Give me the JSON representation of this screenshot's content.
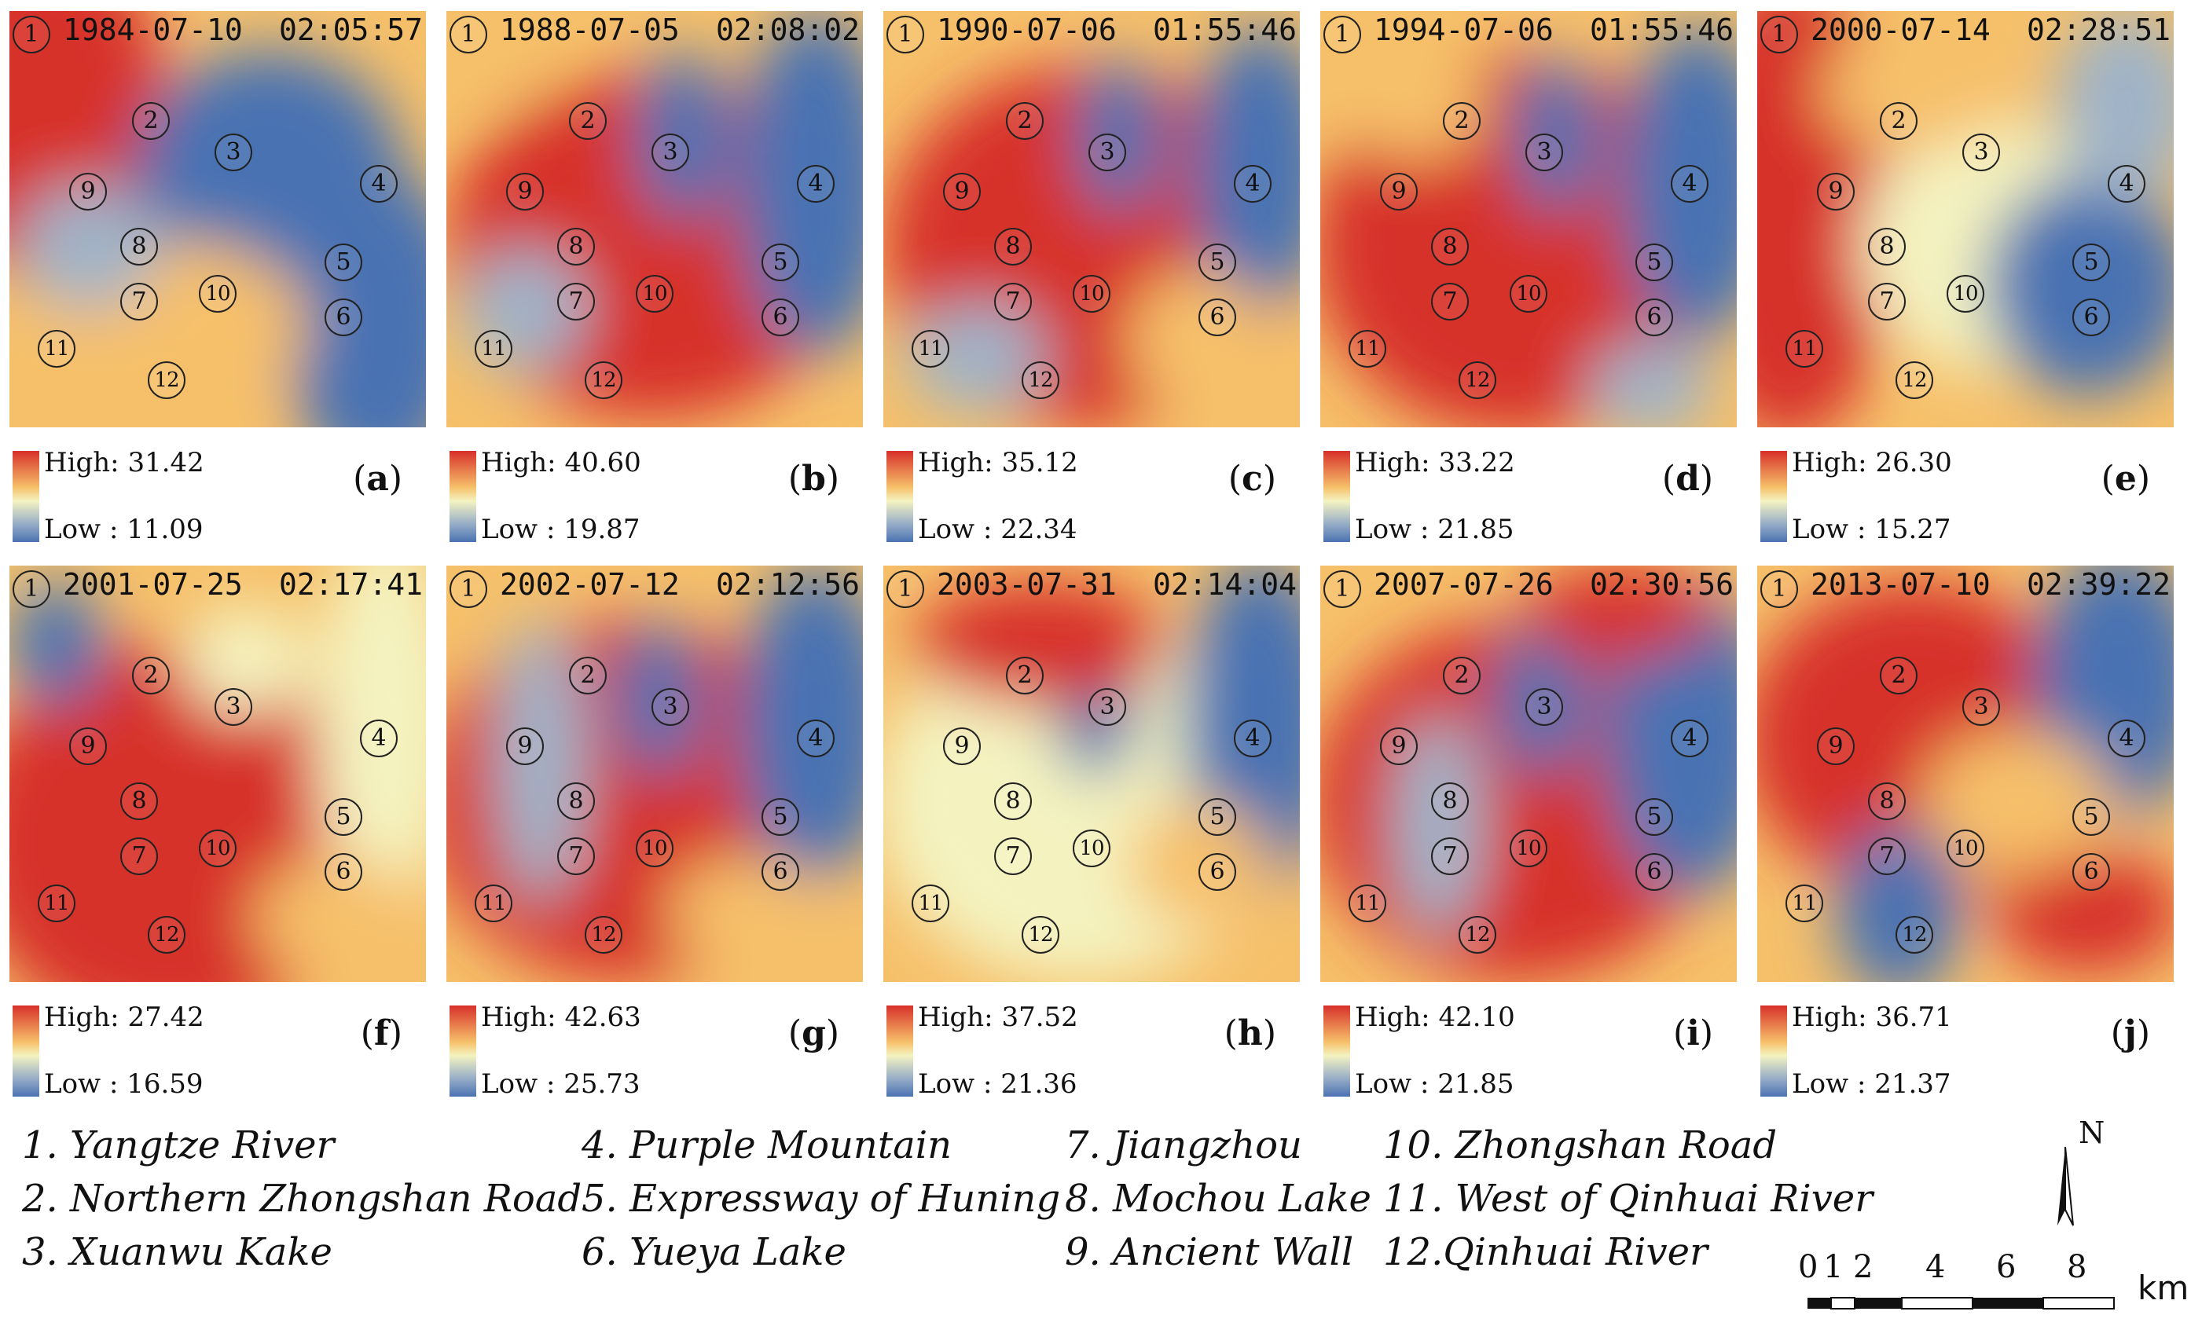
{
  "panels": [
    {
      "letter": "a",
      "date": "1984-07-10",
      "time": "02:05:57",
      "high": "High: 31.42",
      "low": "Low : 11.09"
    },
    {
      "letter": "b",
      "date": "1988-07-05",
      "time": "02:08:02",
      "high": "High: 40.60",
      "low": "Low : 19.87"
    },
    {
      "letter": "c",
      "date": "1990-07-06",
      "time": "01:55:46",
      "high": "High: 35.12",
      "low": "Low : 22.34"
    },
    {
      "letter": "d",
      "date": "1994-07-06",
      "time": "01:55:46",
      "high": "High: 33.22",
      "low": "Low : 21.85"
    },
    {
      "letter": "e",
      "date": "2000-07-14",
      "time": "02:28:51",
      "high": "High: 26.30",
      "low": "Low : 15.27"
    },
    {
      "letter": "f",
      "date": "2001-07-25",
      "time": "02:17:41",
      "high": "High: 27.42",
      "low": "Low : 16.59"
    },
    {
      "letter": "g",
      "date": "2002-07-12",
      "time": "02:12:56",
      "high": "High: 42.63",
      "low": "Low : 25.73"
    },
    {
      "letter": "h",
      "date": "2003-07-31",
      "time": "02:14:04",
      "high": "High: 37.52",
      "low": "Low : 21.36"
    },
    {
      "letter": "i",
      "date": "2007-07-26",
      "time": "02:30:56",
      "high": "High: 42.10",
      "low": "Low : 21.85"
    },
    {
      "letter": "j",
      "date": "2013-07-10",
      "time": "02:39:22",
      "high": "High: 36.71",
      "low": "Low : 21.37"
    }
  ],
  "marker_numbers": [
    "1",
    "2",
    "3",
    "4",
    "5",
    "6",
    "7",
    "8",
    "9",
    "10",
    "11",
    "12"
  ],
  "sites": [
    "1. Yangtze River",
    "2. Northern Zhongshan Road",
    "3. Xuanwu Kake",
    "4. Purple Mountain",
    "5. Expressway of Huning",
    "6. Yueya Lake",
    "7. Jiangzhou",
    "8. Mochou Lake",
    "9. Ancient Wall",
    "10. Zhongshan Road",
    "11. West of Qinhuai River",
    "12.Qinhuai River"
  ],
  "scale_bar": {
    "ticks": [
      "0",
      "1",
      "2",
      "4",
      "6",
      "8"
    ],
    "unit": "km",
    "north": "N"
  },
  "colors": {
    "high": "#d7302a",
    "mid_warm": "#f6c06a",
    "mid": "#f4f3c0",
    "mid_cool": "#9fb3c8",
    "low": "#4a72b2"
  }
}
